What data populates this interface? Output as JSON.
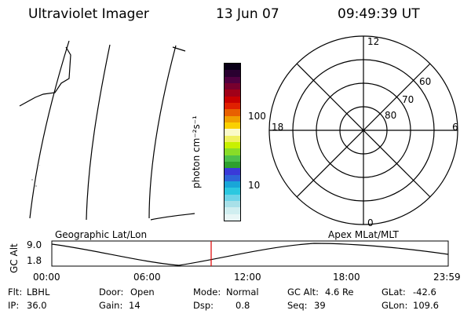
{
  "header": {
    "title": "Ultraviolet Imager",
    "date": "13 Jun 07",
    "time": "09:49:39 UT"
  },
  "colorbar": {
    "unit_label": "photon cm⁻²s⁻¹",
    "tick_100": "100",
    "tick_10": "10",
    "colors": [
      "#e8f6f6",
      "#d0eef0",
      "#a8e0e8",
      "#6fd4e8",
      "#2cc8e0",
      "#19a6d8",
      "#2e64d8",
      "#3a3ad8",
      "#2ea02e",
      "#4cc04c",
      "#88dc28",
      "#c8f000",
      "#f0f060",
      "#fafac8",
      "#fad000",
      "#f0a000",
      "#e86000",
      "#e02000",
      "#c80000",
      "#a00018",
      "#78002e",
      "#500040",
      "#2a0030",
      "#0a0018"
    ]
  },
  "polar": {
    "labels": {
      "noon": "12",
      "dusk": "18",
      "dawn": "6",
      "midnight": "0",
      "lat60": "60",
      "lat70": "70",
      "lat80": "80"
    }
  },
  "altitude_plot": {
    "left_title": "Geographic Lat/Lon",
    "right_title": "Apex MLat/MLT",
    "ylabel": "GC Alt",
    "y_top": "9.0",
    "y_bottom": "1.8",
    "time_ticks": [
      "00:00",
      "06:00",
      "12:00",
      "18:00",
      "23:59"
    ],
    "current_time_marker_color": "#e00000"
  },
  "info": {
    "flt_label": "Flt:",
    "flt_value": "LBHL",
    "ip_label": "IP:",
    "ip_value": "36.0",
    "door_label": "Door:",
    "door_value": "Open",
    "gain_label": "Gain:",
    "gain_value": "14",
    "mode_label": "Mode:",
    "mode_value": "Normal",
    "dsp_label": "Dsp:",
    "dsp_value": "0.8",
    "gcalt_label": "GC Alt:",
    "gcalt_value": "4.6 Re",
    "seq_label": "Seq:",
    "seq_value": "39",
    "glat_label": "GLat:",
    "glat_value": "-42.6",
    "glon_label": "GLon:",
    "glon_value": "109.6"
  }
}
